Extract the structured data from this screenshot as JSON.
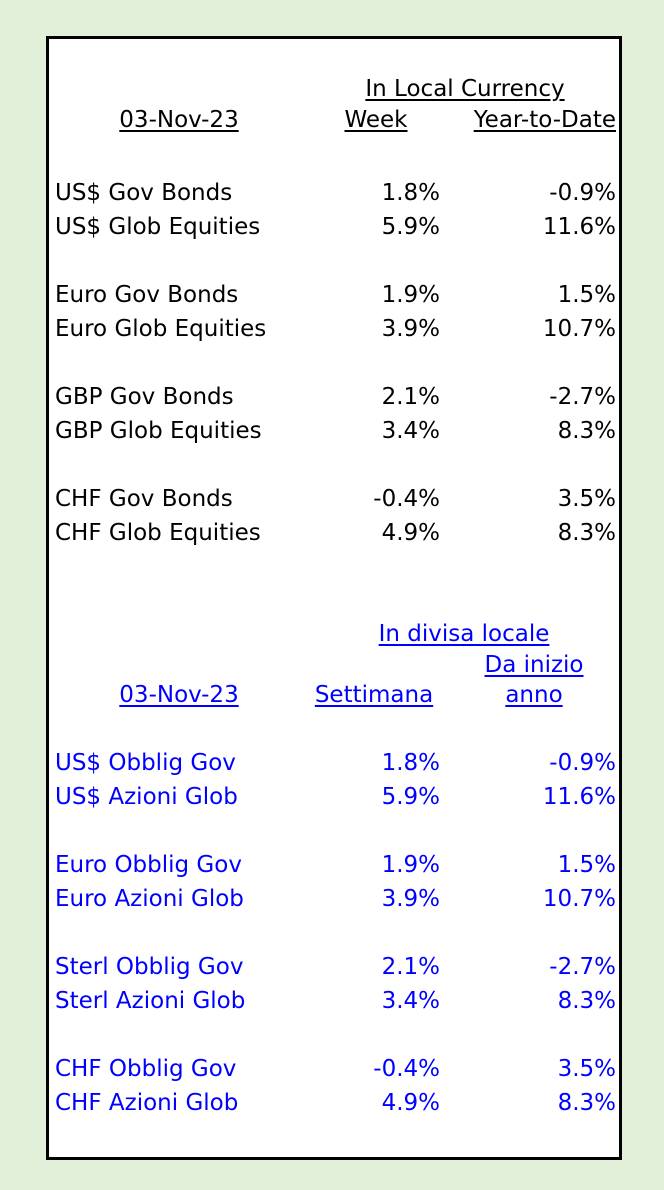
{
  "colors": {
    "background": "#e2f0d9",
    "english_text": "#000000",
    "italian_text": "#0000ff"
  },
  "english": {
    "header_currency": "In Local Currency",
    "date": "03-Nov-23",
    "col_week": "Week",
    "col_ytd": "Year-to-Date",
    "rows": [
      {
        "label": "US$ Gov Bonds",
        "week": "1.8%",
        "ytd": "-0.9%"
      },
      {
        "label": "US$ Glob Equities",
        "week": "5.9%",
        "ytd": "11.6%"
      },
      {
        "label": "Euro Gov Bonds",
        "week": "1.9%",
        "ytd": "1.5%"
      },
      {
        "label": "Euro Glob Equities",
        "week": "3.9%",
        "ytd": "10.7%"
      },
      {
        "label": "GBP Gov Bonds",
        "week": "2.1%",
        "ytd": "-2.7%"
      },
      {
        "label": "GBP Glob Equities",
        "week": "3.4%",
        "ytd": "8.3%"
      },
      {
        "label": "CHF Gov Bonds",
        "week": "-0.4%",
        "ytd": "3.5%"
      },
      {
        "label": "CHF Glob Equities",
        "week": "4.9%",
        "ytd": "8.3%"
      }
    ]
  },
  "italian": {
    "header_currency": "In divisa locale",
    "date": "03-Nov-23",
    "col_week": "Settimana",
    "col_ytd_line1": "Da inizio",
    "col_ytd_line2": "anno",
    "rows": [
      {
        "label": "US$ Obblig Gov",
        "week": "1.8%",
        "ytd": "-0.9%"
      },
      {
        "label": "US$ Azioni Glob",
        "week": "5.9%",
        "ytd": "11.6%"
      },
      {
        "label": "Euro Obblig Gov",
        "week": "1.9%",
        "ytd": "1.5%"
      },
      {
        "label": "Euro Azioni Glob",
        "week": "3.9%",
        "ytd": "10.7%"
      },
      {
        "label": "Sterl Obblig Gov",
        "week": "2.1%",
        "ytd": "-2.7%"
      },
      {
        "label": "Sterl Azioni Glob",
        "week": "3.4%",
        "ytd": "8.3%"
      },
      {
        "label": "CHF Obblig Gov",
        "week": "-0.4%",
        "ytd": "3.5%"
      },
      {
        "label": "CHF Azioni Glob",
        "week": "4.9%",
        "ytd": "8.3%"
      }
    ]
  }
}
